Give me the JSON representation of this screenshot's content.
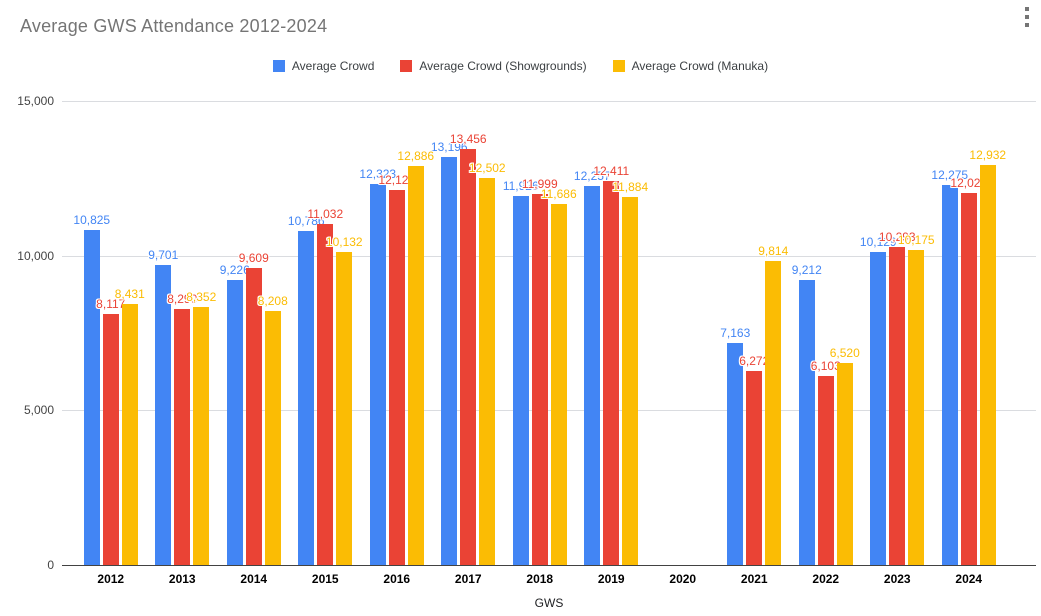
{
  "ui": {
    "menu_icon": "kebab-menu"
  },
  "chart_data": {
    "type": "bar",
    "title": "Average GWS Attendance 2012-2024",
    "xlabel": "GWS",
    "ylabel": "",
    "ylim": [
      0,
      15000
    ],
    "grid": "horizontal",
    "legend_position": "top",
    "yticks": [
      {
        "label": "0",
        "value": 0
      },
      {
        "label": "5,000",
        "value": 5000
      },
      {
        "label": "10,000",
        "value": 10000
      },
      {
        "label": "15,000",
        "value": 15000
      }
    ],
    "categories": [
      "2012",
      "2013",
      "2014",
      "2015",
      "2016",
      "2017",
      "2018",
      "2019",
      "2020",
      "2021",
      "2022",
      "2023",
      "2024"
    ],
    "series": [
      {
        "name": "Average Crowd",
        "color": "#4285F4",
        "values": [
          10825,
          9701,
          9226,
          10786,
          12323,
          13196,
          11926,
          12257,
          null,
          7163,
          9212,
          10129,
          12275
        ]
      },
      {
        "name": "Average Crowd (Showgrounds)",
        "color": "#EA4335",
        "values": [
          8117,
          8290,
          9609,
          11032,
          12126,
          13456,
          11999,
          12411,
          null,
          6272,
          6103,
          10293,
          12028
        ]
      },
      {
        "name": "Average Crowd (Manuka)",
        "color": "#FBBC04",
        "values": [
          8431,
          8352,
          8208,
          10132,
          12886,
          12502,
          11686,
          11884,
          null,
          9814,
          6520,
          10175,
          12932
        ]
      }
    ]
  }
}
